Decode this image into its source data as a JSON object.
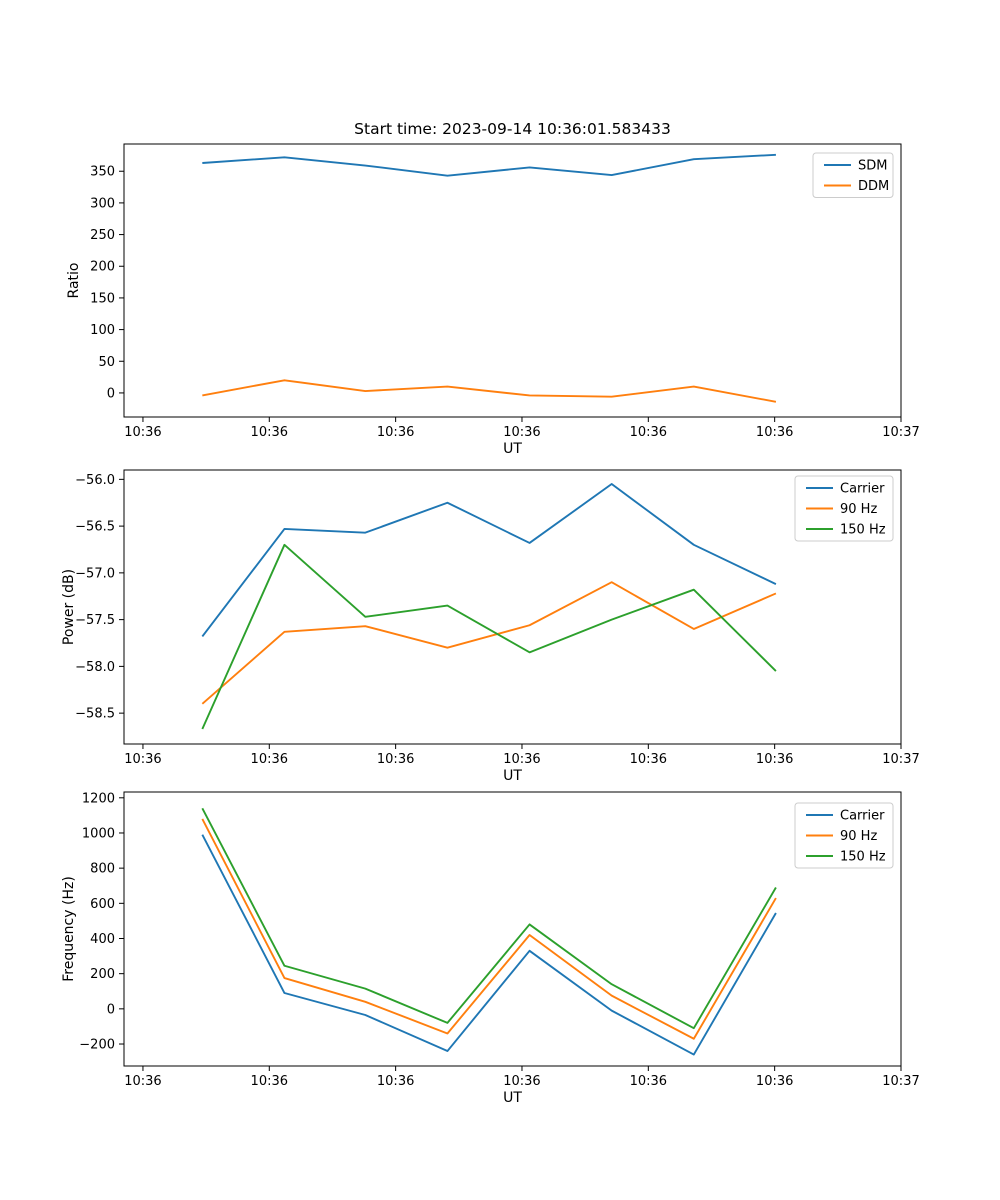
{
  "title": "Start time: 2023-09-14 10:36:01.583433",
  "colors": {
    "blue": "#1f77b4",
    "orange": "#ff7f0e",
    "green": "#2ca02c"
  },
  "chart_data": [
    {
      "id": "ratio",
      "type": "line",
      "title": "",
      "xlabel": "UT",
      "ylabel": "Ratio",
      "grid": false,
      "legend_position": "upper right",
      "x_unit": "seconds after 10:36:00",
      "x": [
        4.7,
        11.2,
        17.6,
        24.1,
        30.6,
        37.1,
        43.6,
        50.1
      ],
      "xlim": [
        -1.5,
        60
      ],
      "ylim": [
        -38,
        393
      ],
      "xticks": [
        0,
        10,
        20,
        30,
        40,
        50,
        60
      ],
      "xtick_labels": [
        "10:36",
        "10:36",
        "10:36",
        "10:36",
        "10:36",
        "10:36",
        "10:37"
      ],
      "yticks": [
        0,
        50,
        100,
        150,
        200,
        250,
        300,
        350
      ],
      "ytick_labels": [
        "0",
        "50",
        "100",
        "150",
        "200",
        "250",
        "300",
        "350"
      ],
      "series": [
        {
          "name": "SDM",
          "color": "#1f77b4",
          "values": [
            363,
            372,
            359,
            343,
            356,
            344,
            369,
            376
          ]
        },
        {
          "name": "DDM",
          "color": "#ff7f0e",
          "values": [
            -4,
            20,
            3,
            10,
            -4,
            -6,
            10,
            -14
          ]
        }
      ]
    },
    {
      "id": "power",
      "type": "line",
      "title": "",
      "xlabel": "UT",
      "ylabel": "Power (dB)",
      "grid": false,
      "legend_position": "upper right",
      "x_unit": "seconds after 10:36:00",
      "x": [
        4.7,
        11.2,
        17.6,
        24.1,
        30.6,
        37.1,
        43.6,
        50.1
      ],
      "xlim": [
        -1.5,
        60
      ],
      "ylim": [
        -58.83,
        -55.9
      ],
      "xticks": [
        0,
        10,
        20,
        30,
        40,
        50,
        60
      ],
      "xtick_labels": [
        "10:36",
        "10:36",
        "10:36",
        "10:36",
        "10:36",
        "10:36",
        "10:37"
      ],
      "yticks": [
        -58.5,
        -58.0,
        -57.5,
        -57.0,
        -56.5,
        -56.0
      ],
      "ytick_labels": [
        "−58.5",
        "−58.0",
        "−57.5",
        "−57.0",
        "−56.5",
        "−56.0"
      ],
      "series": [
        {
          "name": "Carrier",
          "color": "#1f77b4",
          "values": [
            -57.68,
            -56.53,
            -56.57,
            -56.25,
            -56.68,
            -56.05,
            -56.7,
            -57.12
          ]
        },
        {
          "name": "90 Hz",
          "color": "#ff7f0e",
          "values": [
            -58.4,
            -57.63,
            -57.57,
            -57.8,
            -57.56,
            -57.1,
            -57.6,
            -57.22
          ]
        },
        {
          "name": "150 Hz",
          "color": "#2ca02c",
          "values": [
            -58.67,
            -56.7,
            -57.47,
            -57.35,
            -57.85,
            -57.5,
            -57.18,
            -58.05
          ]
        }
      ]
    },
    {
      "id": "frequency",
      "type": "line",
      "title": "",
      "xlabel": "UT",
      "ylabel": "Frequency (Hz)",
      "grid": false,
      "legend_position": "upper right",
      "x_unit": "seconds after 10:36:00",
      "x": [
        4.7,
        11.2,
        17.6,
        24.1,
        30.6,
        37.1,
        43.6,
        50.1
      ],
      "xlim": [
        -1.5,
        60
      ],
      "ylim": [
        -325,
        1233
      ],
      "xticks": [
        0,
        10,
        20,
        30,
        40,
        50,
        60
      ],
      "xtick_labels": [
        "10:36",
        "10:36",
        "10:36",
        "10:36",
        "10:36",
        "10:36",
        "10:37"
      ],
      "yticks": [
        -200,
        0,
        200,
        400,
        600,
        800,
        1000,
        1200
      ],
      "ytick_labels": [
        "−200",
        "0",
        "200",
        "400",
        "600",
        "800",
        "1000",
        "1200"
      ],
      "series": [
        {
          "name": "Carrier",
          "color": "#1f77b4",
          "values": [
            990,
            90,
            -35,
            -240,
            330,
            -10,
            -260,
            545
          ]
        },
        {
          "name": "90 Hz",
          "color": "#ff7f0e",
          "values": [
            1080,
            175,
            40,
            -140,
            420,
            75,
            -170,
            630
          ]
        },
        {
          "name": "150 Hz",
          "color": "#2ca02c",
          "values": [
            1140,
            245,
            115,
            -80,
            480,
            140,
            -110,
            690
          ]
        }
      ]
    }
  ]
}
